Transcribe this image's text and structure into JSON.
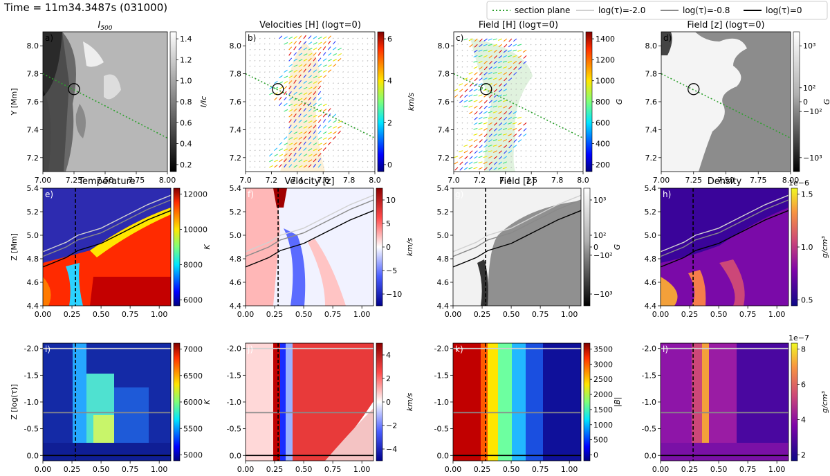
{
  "figure": {
    "time_label": "Time = 11m34.3487s (031000)"
  },
  "legend": {
    "items": [
      {
        "label": "section plane",
        "color": "#2ca02c",
        "style": "dotted"
      },
      {
        "label": "log(τ)=-2.0",
        "color": "#d0d0d0",
        "style": "solid"
      },
      {
        "label": "log(τ)=-0.8",
        "color": "#8a8a8a",
        "style": "solid"
      },
      {
        "label": "log(τ)=0",
        "color": "#000000",
        "style": "solid"
      }
    ]
  },
  "chart_data": [
    {
      "type": "heatmap",
      "panel": "a)",
      "title": "I500",
      "xlim": [
        7.0,
        8.0
      ],
      "ylim": [
        7.1,
        8.1
      ],
      "xticks": [
        "7.00",
        "7.25",
        "7.50",
        "7.75",
        "8.00"
      ],
      "yticks": [
        "7.2",
        "7.4",
        "7.6",
        "7.8",
        "8.0"
      ],
      "ylabel": "Y [Mm]",
      "colorbar": {
        "label": "I/Ic",
        "ticks": [
          "0.2",
          "0.4",
          "0.6",
          "0.8",
          "1.0",
          "1.2",
          "1.4"
        ],
        "cmap": "gray"
      },
      "section_line": [
        [
          7.0,
          7.8
        ],
        [
          8.0,
          7.34
        ]
      ],
      "marker": [
        7.25,
        7.69
      ]
    },
    {
      "type": "vector",
      "panel": "b)",
      "title": "Velocities [H] (logτ=0)",
      "xlim": [
        7.0,
        8.0
      ],
      "ylim": [
        7.1,
        8.1
      ],
      "xticks": [
        "7.0",
        "7.2",
        "7.4",
        "7.6",
        "7.8",
        "8.0"
      ],
      "yticks": [
        "7.2",
        "7.4",
        "7.6",
        "7.8",
        "8.0"
      ],
      "colorbar": {
        "label": "km/s",
        "ticks": [
          "0",
          "2",
          "4",
          "6"
        ],
        "cmap": "jet"
      },
      "section_line": [
        [
          7.0,
          7.8
        ],
        [
          8.0,
          7.34
        ]
      ],
      "marker": [
        7.25,
        7.69
      ]
    },
    {
      "type": "vector",
      "panel": "c)",
      "title": "Field [H] (logτ=0)",
      "xlim": [
        7.0,
        8.0
      ],
      "ylim": [
        7.1,
        8.1
      ],
      "xticks": [
        "7.0",
        "7.2",
        "7.4",
        "7.6",
        "7.8",
        "8.0"
      ],
      "yticks": [
        "7.2",
        "7.4",
        "7.6",
        "7.8",
        "8.0"
      ],
      "colorbar": {
        "label": "G",
        "ticks": [
          "200",
          "400",
          "600",
          "800",
          "1000",
          "1200",
          "1400"
        ],
        "cmap": "jet"
      },
      "section_line": [
        [
          7.0,
          7.8
        ],
        [
          8.0,
          7.34
        ]
      ],
      "marker": [
        7.25,
        7.69
      ]
    },
    {
      "type": "heatmap",
      "panel": "d)",
      "title": "Field [z] (logτ=0)",
      "xlim": [
        7.0,
        8.0
      ],
      "ylim": [
        7.1,
        8.1
      ],
      "xticks": [
        "7.00",
        "7.25",
        "7.50",
        "7.75",
        "8.00"
      ],
      "yticks": [
        "7.2",
        "7.4",
        "7.6",
        "7.8",
        "8.0"
      ],
      "colorbar": {
        "label": "G",
        "ticks": [
          "10³",
          "10²",
          "0",
          "−10²",
          "−10³"
        ],
        "cmap": "gray"
      },
      "section_line": [
        [
          7.0,
          7.8
        ],
        [
          8.0,
          7.34
        ]
      ],
      "marker": [
        7.25,
        7.69
      ]
    },
    {
      "type": "heatmap",
      "panel": "e)",
      "title": "Temperature",
      "xlim": [
        0.0,
        1.1
      ],
      "ylim": [
        4.4,
        5.4
      ],
      "xticks": [
        "0.00",
        "0.25",
        "0.50",
        "0.75",
        "1.00"
      ],
      "yticks": [
        "4.4",
        "4.6",
        "4.8",
        "5.0",
        "5.2",
        "5.4"
      ],
      "ylabel": "Z [Mm]",
      "colorbar": {
        "label": "K",
        "ticks": [
          "6000",
          "8000",
          "10000",
          "12000"
        ],
        "cmap": "jet"
      },
      "vline": 0.28
    },
    {
      "type": "heatmap",
      "panel": "f)",
      "title": "Velocity [z]",
      "xlim": [
        0.0,
        1.1
      ],
      "ylim": [
        4.4,
        5.4
      ],
      "xticks": [
        "0.00",
        "0.25",
        "0.50",
        "0.75",
        "1.00"
      ],
      "yticks": [
        "4.4",
        "4.6",
        "4.8",
        "5.0",
        "5.2",
        "5.4"
      ],
      "colorbar": {
        "label": "km/s",
        "ticks": [
          "10",
          "5",
          "0",
          "−5",
          "−10"
        ],
        "cmap": "bwr"
      },
      "vline": 0.28
    },
    {
      "type": "heatmap",
      "panel": "g)",
      "title": "Field [z]",
      "xlim": [
        0.0,
        1.1
      ],
      "ylim": [
        4.4,
        5.4
      ],
      "xticks": [
        "0.00",
        "0.25",
        "0.50",
        "0.75",
        "1.00"
      ],
      "yticks": [
        "4.4",
        "4.6",
        "4.8",
        "5.0",
        "5.2",
        "5.4"
      ],
      "colorbar": {
        "label": "G",
        "ticks": [
          "10³",
          "10²",
          "0",
          "−10²",
          "−10³"
        ],
        "cmap": "gray"
      },
      "vline": 0.28
    },
    {
      "type": "heatmap",
      "panel": "h)",
      "title": "Density",
      "xlim": [
        0.0,
        1.1
      ],
      "ylim": [
        4.4,
        5.4
      ],
      "xticks": [
        "0.00",
        "0.25",
        "0.50",
        "0.75",
        "1.00"
      ],
      "yticks": [
        "4.4",
        "4.6",
        "4.8",
        "5.0",
        "5.2",
        "5.4"
      ],
      "colorbar": {
        "label": "g/cm³",
        "ticks": [
          "0.5",
          "1.0",
          "1.5"
        ],
        "cmap": "plasma",
        "offset": "1e−6"
      },
      "vline": 0.28
    },
    {
      "type": "heatmap",
      "panel": "i)",
      "xlim": [
        0.0,
        1.1
      ],
      "ylim": [
        0.1,
        -2.1
      ],
      "xticks": [
        "0.00",
        "0.25",
        "0.50",
        "0.75",
        "1.00"
      ],
      "yticks": [
        "0.0",
        "-0.5",
        "-1.0",
        "-1.5",
        "-2.0"
      ],
      "ylabel": "Z [log(τ)]",
      "colorbar": {
        "label": "K",
        "ticks": [
          "5000",
          "5500",
          "6000",
          "6500",
          "7000"
        ],
        "cmap": "jet"
      },
      "vline": 0.28
    },
    {
      "type": "heatmap",
      "panel": "j)",
      "xlim": [
        0.0,
        1.1
      ],
      "ylim": [
        0.1,
        -2.1
      ],
      "xticks": [
        "0.00",
        "0.25",
        "0.50",
        "0.75",
        "1.00"
      ],
      "yticks": [
        "0.0",
        "-0.5",
        "-1.0",
        "-1.5",
        "-2.0"
      ],
      "colorbar": {
        "label": "km/s",
        "ticks": [
          "4",
          "2",
          "0",
          "−2",
          "−4"
        ],
        "cmap": "bwr"
      },
      "vline": 0.28
    },
    {
      "type": "heatmap",
      "panel": "k)",
      "xlim": [
        0.0,
        1.1
      ],
      "ylim": [
        0.1,
        -2.1
      ],
      "xticks": [
        "0.00",
        "0.25",
        "0.50",
        "0.75",
        "1.00"
      ],
      "yticks": [
        "0.0",
        "-0.5",
        "-1.0",
        "-1.5",
        "-2.0"
      ],
      "colorbar": {
        "label": "|B|",
        "ticks": [
          "0",
          "500",
          "1000",
          "1500",
          "2000",
          "2500",
          "3000",
          "3500"
        ],
        "cmap": "jet"
      },
      "vline": 0.28
    },
    {
      "type": "heatmap",
      "panel": "l)",
      "xlim": [
        0.0,
        1.1
      ],
      "ylim": [
        0.1,
        -2.1
      ],
      "xticks": [
        "0.00",
        "0.25",
        "0.50",
        "0.75",
        "1.00"
      ],
      "yticks": [
        "0.0",
        "-0.5",
        "-1.0",
        "-1.5",
        "-2.0"
      ],
      "colorbar": {
        "label": "g/cm³",
        "ticks": [
          "2",
          "4",
          "6",
          "8"
        ],
        "cmap": "plasma",
        "offset": "1e−7"
      },
      "vline": 0.28
    }
  ]
}
